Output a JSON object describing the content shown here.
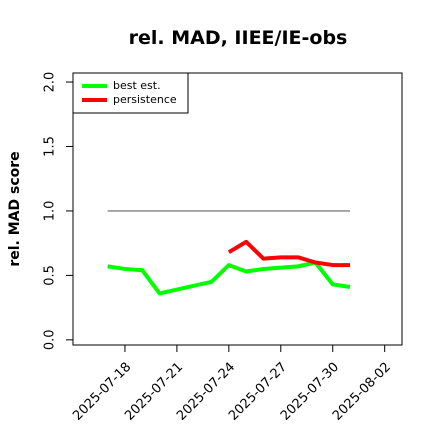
{
  "chart_data": {
    "type": "line",
    "title": "rel. MAD, IIEE/IE-obs",
    "y_label": "rel. MAD score",
    "x": [
      "2025-07-17",
      "2025-07-18",
      "2025-07-19",
      "2025-07-20",
      "2025-07-21",
      "2025-07-22",
      "2025-07-23",
      "2025-07-24",
      "2025-07-25",
      "2025-07-26",
      "2025-07-27",
      "2025-07-28",
      "2025-07-29",
      "2025-07-30",
      "2025-07-31"
    ],
    "series": [
      {
        "name": "best est.",
        "color": "#00ff00",
        "values": [
          0.57,
          0.55,
          0.54,
          0.36,
          0.39,
          0.42,
          0.45,
          0.58,
          0.53,
          0.55,
          0.56,
          0.57,
          0.6,
          0.43,
          0.41
        ]
      },
      {
        "name": "persistence",
        "color": "#ff0000",
        "values": [
          null,
          null,
          null,
          null,
          null,
          null,
          null,
          0.68,
          0.76,
          0.63,
          0.64,
          0.64,
          0.6,
          0.58,
          0.58
        ]
      }
    ],
    "reference_line": {
      "value": 1.0,
      "color": "#808080"
    },
    "xlim": [
      "2025-07-15",
      "2025-08-03"
    ],
    "xticks": [
      "2025-07-18",
      "2025-07-21",
      "2025-07-24",
      "2025-07-27",
      "2025-07-30",
      "2025-08-02"
    ],
    "ylim": [
      -0.04,
      2.07
    ],
    "yticks": [
      {
        "value": 0,
        "label": "0.0"
      },
      0.5,
      {
        "value": 1,
        "label": "1.0"
      },
      1.5,
      {
        "value": 2,
        "label": "2.0"
      }
    ],
    "legend": "top-left"
  }
}
